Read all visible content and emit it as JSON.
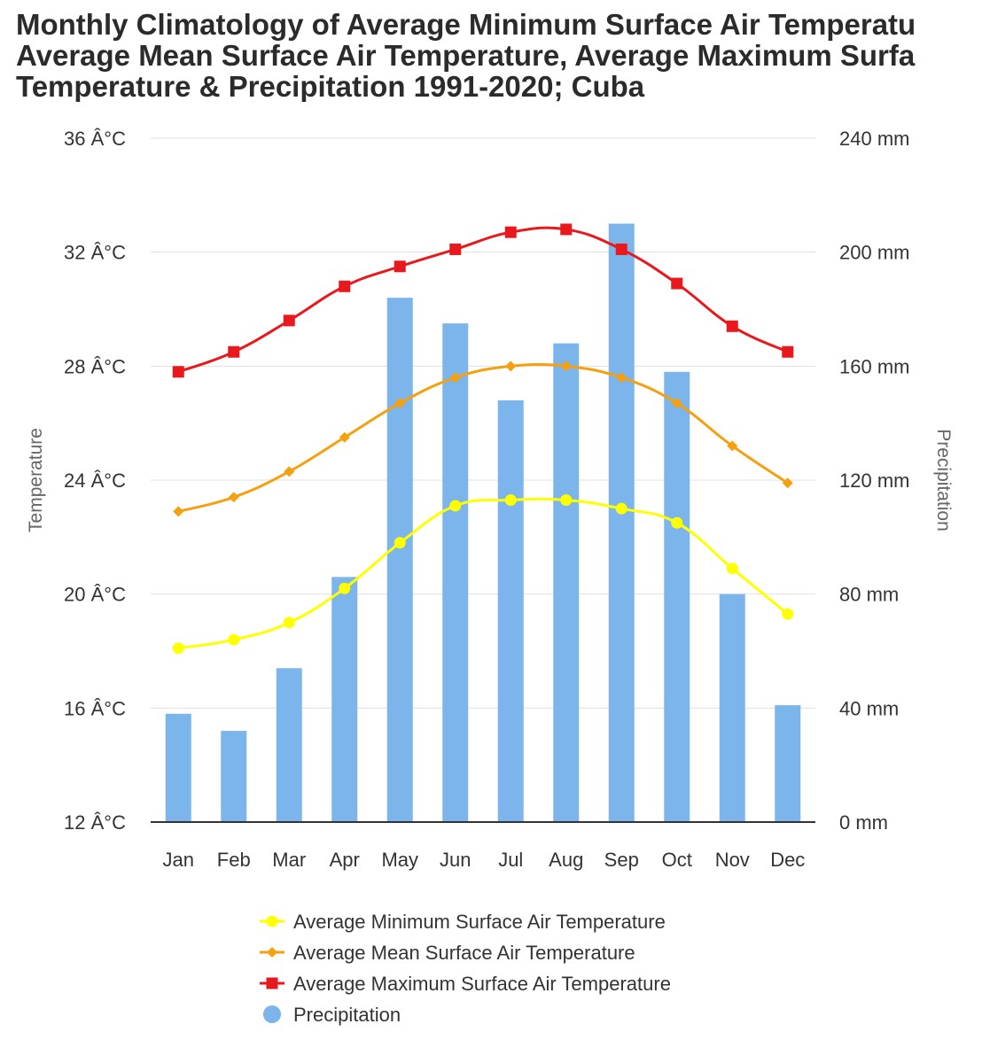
{
  "title_lines": [
    "Monthly Climatology of Average Minimum Surface Air Temperatu",
    "Average Mean Surface Air Temperature, Average Maximum Surfa",
    "Temperature & Precipitation 1991-2020; Cuba"
  ],
  "chart_data": {
    "type": "bar+line",
    "title": "Monthly Climatology of Average Minimum Surface Air Temperature, Average Mean Surface Air Temperature, Average Maximum Surface Air Temperature & Precipitation 1991-2020; Cuba",
    "categories": [
      "Jan",
      "Feb",
      "Mar",
      "Apr",
      "May",
      "Jun",
      "Jul",
      "Aug",
      "Sep",
      "Oct",
      "Nov",
      "Dec"
    ],
    "ylabel_left": "Temperature",
    "ylabel_right": "Precipitation",
    "ylim_left": [
      12,
      36
    ],
    "ylim_right": [
      0,
      240
    ],
    "left_ticks": [
      "12 Â°C",
      "16 Â°C",
      "20 Â°C",
      "24 Â°C",
      "28 Â°C",
      "32 Â°C",
      "36 Â°C"
    ],
    "left_tick_values": [
      12,
      16,
      20,
      24,
      28,
      32,
      36
    ],
    "right_ticks": [
      "0 mm",
      "40 mm",
      "80 mm",
      "120 mm",
      "160 mm",
      "200 mm",
      "240 mm"
    ],
    "right_tick_values": [
      0,
      40,
      80,
      120,
      160,
      200,
      240
    ],
    "grid": true,
    "series": [
      {
        "name": "Average Minimum Surface Air Temperature",
        "kind": "line",
        "axis": "left",
        "color": "#ffff00",
        "marker": "circle",
        "values": [
          18.1,
          18.4,
          19.0,
          20.2,
          21.8,
          23.1,
          23.3,
          23.3,
          23.0,
          22.5,
          20.9,
          19.3
        ]
      },
      {
        "name": "Average Mean Surface Air Temperature",
        "kind": "line",
        "axis": "left",
        "color": "#f5a00f",
        "marker": "diamond",
        "values": [
          22.9,
          23.4,
          24.3,
          25.5,
          26.7,
          27.6,
          28.0,
          28.0,
          27.6,
          26.7,
          25.2,
          23.9
        ]
      },
      {
        "name": "Average Maximum Surface Air Temperature",
        "kind": "line",
        "axis": "left",
        "color": "#e8181c",
        "marker": "square",
        "values": [
          27.8,
          28.5,
          29.6,
          30.8,
          31.5,
          32.1,
          32.7,
          32.8,
          32.1,
          30.9,
          29.4,
          28.5
        ]
      },
      {
        "name": "Precipitation",
        "kind": "bar",
        "axis": "right",
        "color": "#7cb5ec",
        "marker": "circle",
        "values": [
          38,
          32,
          54,
          86,
          184,
          175,
          148,
          168,
          210,
          158,
          80,
          41
        ]
      }
    ],
    "legend_position": "bottom"
  }
}
